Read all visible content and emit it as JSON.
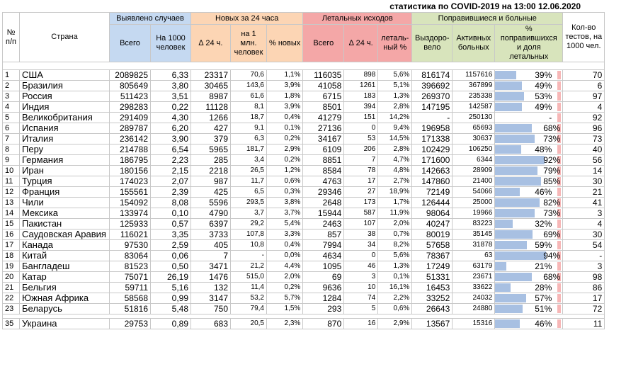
{
  "title": "статистика по COVID-2019 на 13:00 12.06.2020",
  "headers": {
    "num": "№ п/п",
    "country": "Страна",
    "cases": "Выявлено случаев",
    "new24": "Новых за 24 часа",
    "deaths": "Летальных исходов",
    "recovered": "Поправившиеся и больные",
    "tests": "Кол-во тестов, на 1000 чел."
  },
  "subheaders": [
    "Всего",
    "На 1000 человек",
    "∆ 24 ч.",
    "на 1 млн. человек",
    "% новых",
    "Всего",
    "∆ 24 ч.",
    "леталь-ный %",
    "Выздоро-вело",
    "Активных больных",
    "% поправившихся и доля летальных"
  ],
  "rows": [
    {
      "n": "1",
      "country": "США",
      "total": "2089825",
      "per1000": "6,33",
      "d24": "23317",
      "per1m": "70,6",
      "pnew": "1,1%",
      "deaths": "116035",
      "dd24": "898",
      "lethal": "5,6%",
      "recovered": "816174",
      "active": "1157616",
      "prec": "39%",
      "prec_v": 39,
      "tests": "70"
    },
    {
      "n": "2",
      "country": "Бразилия",
      "total": "805649",
      "per1000": "3,80",
      "d24": "30465",
      "per1m": "143,6",
      "pnew": "3,9%",
      "deaths": "41058",
      "dd24": "1261",
      "lethal": "5,1%",
      "recovered": "396692",
      "active": "367899",
      "prec": "49%",
      "prec_v": 49,
      "tests": "6"
    },
    {
      "n": "3",
      "country": "Россия",
      "total": "511423",
      "per1000": "3,51",
      "d24": "8987",
      "per1m": "61,6",
      "pnew": "1,8%",
      "deaths": "6715",
      "dd24": "183",
      "lethal": "1,3%",
      "recovered": "269370",
      "active": "235338",
      "prec": "53%",
      "prec_v": 53,
      "tests": "97"
    },
    {
      "n": "4",
      "country": "Индия",
      "total": "298283",
      "per1000": "0,22",
      "d24": "11128",
      "per1m": "8,1",
      "pnew": "3,9%",
      "deaths": "8501",
      "dd24": "394",
      "lethal": "2,8%",
      "recovered": "147195",
      "active": "142587",
      "prec": "49%",
      "prec_v": 49,
      "tests": "4"
    },
    {
      "n": "5",
      "country": "Великобритания",
      "total": "291409",
      "per1000": "4,30",
      "d24": "1266",
      "per1m": "18,7",
      "pnew": "0,4%",
      "deaths": "41279",
      "dd24": "151",
      "lethal": "14,2%",
      "recovered": "-",
      "active": "250130",
      "prec": "-",
      "prec_v": 0,
      "tests": "92"
    },
    {
      "n": "6",
      "country": "Испания",
      "total": "289787",
      "per1000": "6,20",
      "d24": "427",
      "per1m": "9,1",
      "pnew": "0,1%",
      "deaths": "27136",
      "dd24": "0",
      "lethal": "9,4%",
      "recovered": "196958",
      "active": "65693",
      "prec": "68%",
      "prec_v": 68,
      "tests": "96"
    },
    {
      "n": "7",
      "country": "Италия",
      "total": "236142",
      "per1000": "3,90",
      "d24": "379",
      "per1m": "6,3",
      "pnew": "0,2%",
      "deaths": "34167",
      "dd24": "53",
      "lethal": "14,5%",
      "recovered": "171338",
      "active": "30637",
      "prec": "73%",
      "prec_v": 73,
      "tests": "73"
    },
    {
      "n": "8",
      "country": "Перу",
      "total": "214788",
      "per1000": "6,54",
      "d24": "5965",
      "per1m": "181,7",
      "pnew": "2,9%",
      "deaths": "6109",
      "dd24": "206",
      "lethal": "2,8%",
      "recovered": "102429",
      "active": "106250",
      "prec": "48%",
      "prec_v": 48,
      "tests": "40"
    },
    {
      "n": "9",
      "country": "Германия",
      "total": "186795",
      "per1000": "2,23",
      "d24": "285",
      "per1m": "3,4",
      "pnew": "0,2%",
      "deaths": "8851",
      "dd24": "7",
      "lethal": "4,7%",
      "recovered": "171600",
      "active": "6344",
      "prec": "92%",
      "prec_v": 92,
      "tests": "56"
    },
    {
      "n": "10",
      "country": "Иран",
      "total": "180156",
      "per1000": "2,15",
      "d24": "2218",
      "per1m": "26,5",
      "pnew": "1,2%",
      "deaths": "8584",
      "dd24": "78",
      "lethal": "4,8%",
      "recovered": "142663",
      "active": "28909",
      "prec": "79%",
      "prec_v": 79,
      "tests": "14"
    },
    {
      "n": "11",
      "country": "Турция",
      "total": "174023",
      "per1000": "2,07",
      "d24": "987",
      "per1m": "11,7",
      "pnew": "0,6%",
      "deaths": "4763",
      "dd24": "17",
      "lethal": "2,7%",
      "recovered": "147860",
      "active": "21400",
      "prec": "85%",
      "prec_v": 85,
      "tests": "30"
    },
    {
      "n": "12",
      "country": "Франция",
      "total": "155561",
      "per1000": "2,39",
      "d24": "425",
      "per1m": "6,5",
      "pnew": "0,3%",
      "deaths": "29346",
      "dd24": "27",
      "lethal": "18,9%",
      "recovered": "72149",
      "active": "54066",
      "prec": "46%",
      "prec_v": 46,
      "tests": "21"
    },
    {
      "n": "13",
      "country": "Чили",
      "total": "154092",
      "per1000": "8,08",
      "d24": "5596",
      "per1m": "293,5",
      "pnew": "3,8%",
      "deaths": "2648",
      "dd24": "173",
      "lethal": "1,7%",
      "recovered": "126444",
      "active": "25000",
      "prec": "82%",
      "prec_v": 82,
      "tests": "41"
    },
    {
      "n": "14",
      "country": "Мексика",
      "total": "133974",
      "per1000": "0,10",
      "d24": "4790",
      "per1m": "3,7",
      "pnew": "3,7%",
      "deaths": "15944",
      "dd24": "587",
      "lethal": "11,9%",
      "recovered": "98064",
      "active": "19966",
      "prec": "73%",
      "prec_v": 73,
      "tests": "3"
    },
    {
      "n": "15",
      "country": "Пакистан",
      "total": "125933",
      "per1000": "0,57",
      "d24": "6397",
      "per1m": "29,2",
      "pnew": "5,4%",
      "deaths": "2463",
      "dd24": "107",
      "lethal": "2,0%",
      "recovered": "40247",
      "active": "83223",
      "prec": "32%",
      "prec_v": 32,
      "tests": "4"
    },
    {
      "n": "16",
      "country": "Саудовская Аравия",
      "total": "116021",
      "per1000": "3,35",
      "d24": "3733",
      "per1m": "107,8",
      "pnew": "3,3%",
      "deaths": "857",
      "dd24": "38",
      "lethal": "0,7%",
      "recovered": "80019",
      "active": "35145",
      "prec": "69%",
      "prec_v": 69,
      "tests": "30"
    },
    {
      "n": "17",
      "country": "Канада",
      "total": "97530",
      "per1000": "2,59",
      "d24": "405",
      "per1m": "10,8",
      "pnew": "0,4%",
      "deaths": "7994",
      "dd24": "34",
      "lethal": "8,2%",
      "recovered": "57658",
      "active": "31878",
      "prec": "59%",
      "prec_v": 59,
      "tests": "54"
    },
    {
      "n": "18",
      "country": "Китай",
      "total": "83064",
      "per1000": "0,06",
      "d24": "7",
      "per1m": "-",
      "pnew": "0,0%",
      "deaths": "4634",
      "dd24": "0",
      "lethal": "5,6%",
      "recovered": "78367",
      "active": "63",
      "prec": "94%",
      "prec_v": 94,
      "tests": "-"
    },
    {
      "n": "19",
      "country": "Бангладеш",
      "total": "81523",
      "per1000": "0,50",
      "d24": "3471",
      "per1m": "21,2",
      "pnew": "4,4%",
      "deaths": "1095",
      "dd24": "46",
      "lethal": "1,3%",
      "recovered": "17249",
      "active": "63179",
      "prec": "21%",
      "prec_v": 21,
      "tests": "3"
    },
    {
      "n": "20",
      "country": "Катар",
      "total": "75071",
      "per1000": "26,19",
      "d24": "1476",
      "per1m": "515,0",
      "pnew": "2,0%",
      "deaths": "69",
      "dd24": "3",
      "lethal": "0,1%",
      "recovered": "51331",
      "active": "23671",
      "prec": "68%",
      "prec_v": 68,
      "tests": "98"
    },
    {
      "n": "21",
      "country": "Бельгия",
      "total": "59711",
      "per1000": "5,16",
      "d24": "132",
      "per1m": "11,4",
      "pnew": "0,2%",
      "deaths": "9636",
      "dd24": "10",
      "lethal": "16,1%",
      "recovered": "16453",
      "active": "33622",
      "prec": "28%",
      "prec_v": 28,
      "tests": "86"
    },
    {
      "n": "22",
      "country": "Южная Африка",
      "total": "58568",
      "per1000": "0,99",
      "d24": "3147",
      "per1m": "53,2",
      "pnew": "5,7%",
      "deaths": "1284",
      "dd24": "74",
      "lethal": "2,2%",
      "recovered": "33252",
      "active": "24032",
      "prec": "57%",
      "prec_v": 57,
      "tests": "17"
    },
    {
      "n": "23",
      "country": "Беларусь",
      "total": "51816",
      "per1000": "5,48",
      "d24": "750",
      "per1m": "79,4",
      "pnew": "1,5%",
      "deaths": "293",
      "dd24": "5",
      "lethal": "0,6%",
      "recovered": "26643",
      "active": "24880",
      "prec": "51%",
      "prec_v": 51,
      "tests": "72"
    }
  ],
  "ukraine": {
    "n": "35",
    "country": "Украина",
    "total": "29753",
    "per1000": "0,89",
    "d24": "683",
    "per1m": "20,5",
    "pnew": "2,3%",
    "deaths": "870",
    "dd24": "16",
    "lethal": "2,9%",
    "recovered": "13567",
    "active": "15316",
    "prec": "46%",
    "prec_v": 46,
    "tests": "11"
  },
  "colors": {
    "blue": "#c5d9f1",
    "orange": "#fcd5b4",
    "red": "#f4a7a7",
    "green": "#d8e4bc",
    "pink": "#f2dcdb",
    "bar": "#a8c0e2"
  }
}
